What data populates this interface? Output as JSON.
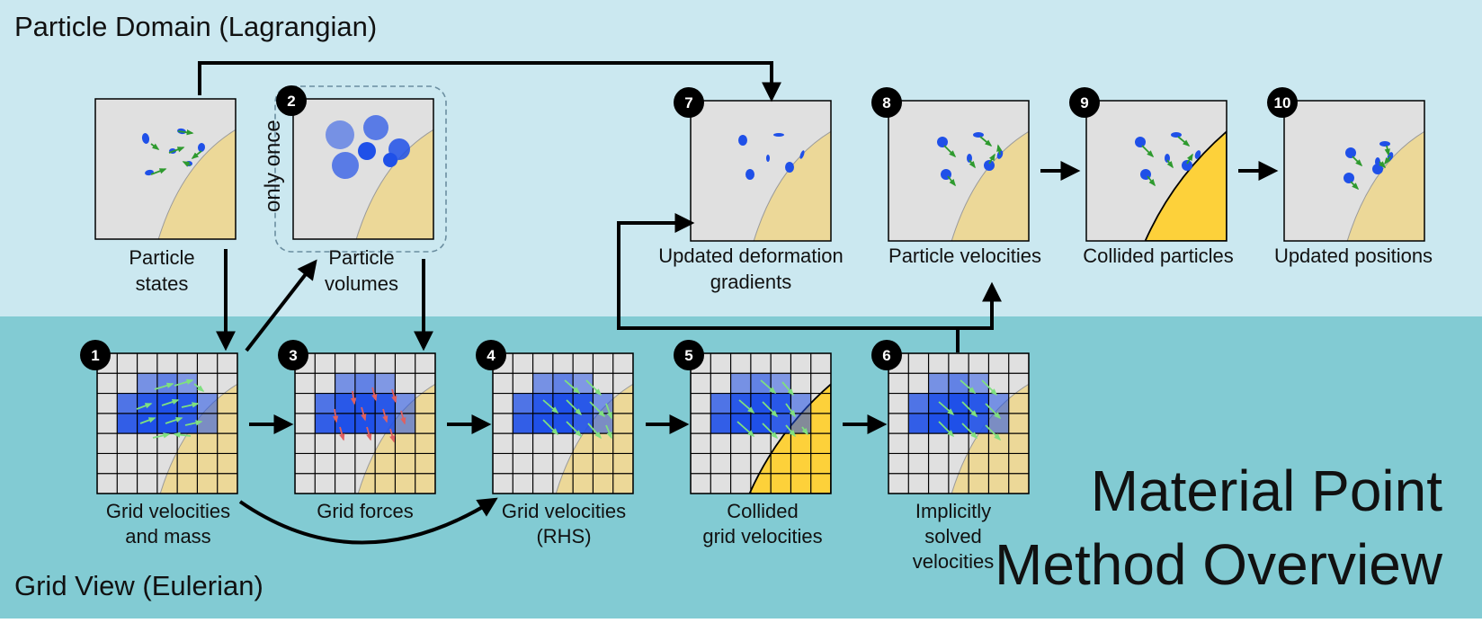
{
  "regions": {
    "top": {
      "label": "Particle Domain (Lagrangian)",
      "color": "#cbe8f0"
    },
    "bottom": {
      "label": "Grid View (Eulerian)",
      "color": "#82cbd3"
    }
  },
  "title": {
    "line1": "Material Point",
    "line2": "Method Overview"
  },
  "colors": {
    "panel_bg": "#e0e0e0",
    "material": "#ecd898",
    "collided_material": "#fdd13a",
    "particle": "#1f50e8",
    "velocity_arrow": "#2e9a2e",
    "grid_arrow": "#7fe07f",
    "force_arrow": "#e06060"
  },
  "note": "only once",
  "steps": [
    {
      "id": "particle-states",
      "number": "",
      "caption": [
        "Particle",
        "states"
      ]
    },
    {
      "id": "particle-volumes",
      "number": "2",
      "caption": [
        "Particle",
        "volumes"
      ]
    },
    {
      "id": "updated-deformation-gradients",
      "number": "7",
      "caption": [
        "Updated deformation",
        "gradients"
      ]
    },
    {
      "id": "particle-velocities",
      "number": "8",
      "caption": [
        "Particle velocities"
      ]
    },
    {
      "id": "collided-particles",
      "number": "9",
      "caption": [
        "Collided particles"
      ]
    },
    {
      "id": "updated-positions",
      "number": "10",
      "caption": [
        "Updated positions"
      ]
    },
    {
      "id": "grid-velocities-and-mass",
      "number": "1",
      "caption": [
        "Grid velocities",
        "and mass"
      ]
    },
    {
      "id": "grid-forces",
      "number": "3",
      "caption": [
        "Grid forces"
      ]
    },
    {
      "id": "grid-velocities-rhs",
      "number": "4",
      "caption": [
        "Grid velocities",
        "(RHS)"
      ]
    },
    {
      "id": "collided-grid-velocities",
      "number": "5",
      "caption": [
        "Collided",
        "grid velocities"
      ]
    },
    {
      "id": "implicitly-solved-velocities",
      "number": "6",
      "caption": [
        "Implicitly",
        "solved",
        "velocities"
      ]
    }
  ]
}
